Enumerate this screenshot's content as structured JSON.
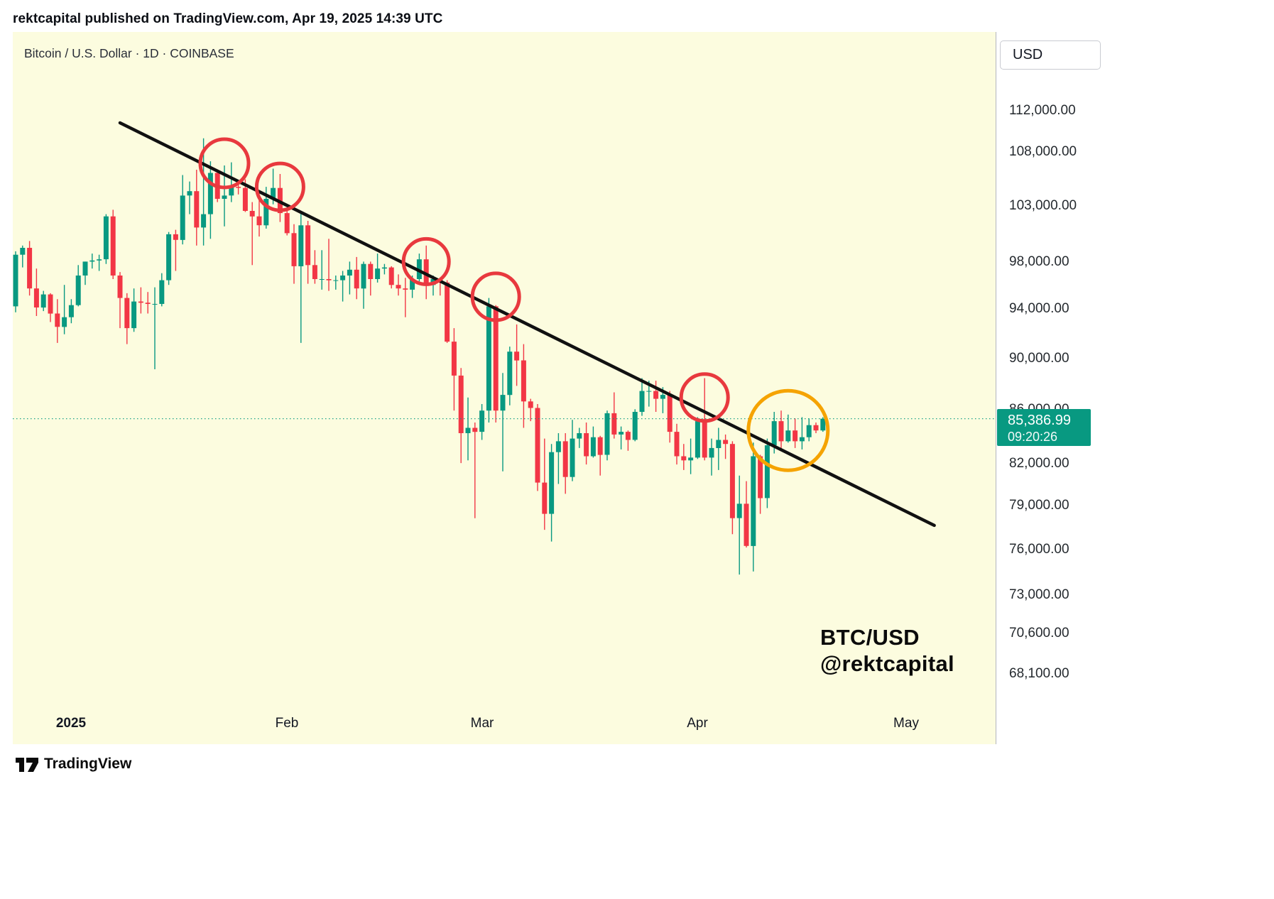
{
  "page": {
    "publish_line": "rektcapital published on TradingView.com, Apr 19, 2025 14:39 UTC",
    "footer_brand": "TradingView"
  },
  "chart_header": {
    "symbol_title": "Bitcoin / U.S. Dollar · 1D · COINBASE"
  },
  "watermark": {
    "line1": "BTC/USD",
    "line2": "@rektcapital"
  },
  "price_axis": {
    "currency_button": "USD",
    "labels": [
      {
        "text": "112,000.00",
        "value": 112000
      },
      {
        "text": "108,000.00",
        "value": 108000
      },
      {
        "text": "103,000.00",
        "value": 103000
      },
      {
        "text": "98,000.00",
        "value": 98000
      },
      {
        "text": "94,000.00",
        "value": 94000
      },
      {
        "text": "90,000.00",
        "value": 90000
      },
      {
        "text": "86,000.00",
        "value": 86000
      },
      {
        "text": "82,000.00",
        "value": 82000
      },
      {
        "text": "79,000.00",
        "value": 79000
      },
      {
        "text": "76,000.00",
        "value": 76000
      },
      {
        "text": "73,000.00",
        "value": 73000
      },
      {
        "text": "70,600.00",
        "value": 70600
      },
      {
        "text": "68,100.00",
        "value": 68100
      }
    ],
    "current_price": {
      "price_label": "85,386.99",
      "countdown": "09:20:26",
      "value": 85386.99
    }
  },
  "time_axis": {
    "labels": [
      {
        "text": "2025",
        "date": "01-01",
        "year": true
      },
      {
        "text": "Feb",
        "date": "02-01",
        "year": false
      },
      {
        "text": "Mar",
        "date": "03-01",
        "year": false
      },
      {
        "text": "Apr",
        "date": "04-01",
        "year": false
      },
      {
        "text": "May",
        "date": "05-01",
        "year": false
      }
    ]
  },
  "colors": {
    "background": "#FCFCDF",
    "candle_up": "#089981",
    "candle_down": "#F23645",
    "trendline": "#111111",
    "red_circle": "#E8393E",
    "orange_circle": "#F5A300",
    "price_line": "#089981",
    "badge": "#089981"
  },
  "chart_data": {
    "type": "candlestick",
    "symbol": "BTC/USD",
    "timeframe": "1D",
    "exchange": "COINBASE",
    "scale": "logarithmic",
    "title": "Bitcoin / U.S. Dollar · 1D · COINBASE",
    "y_axis_values": [
      112000,
      108000,
      103000,
      98000,
      94000,
      90000,
      86000,
      82000,
      79000,
      76000,
      73000,
      70600,
      68100
    ],
    "x_range": [
      "2024-12-24",
      "2025-04-19"
    ],
    "last_price": 85386.99,
    "price_line": {
      "value": 85386.99,
      "style": "dotted"
    },
    "trendline": {
      "type": "descending-resistance",
      "start": {
        "date": "01-08",
        "price": 110900
      },
      "end": {
        "date": "05-05",
        "price": 77700
      }
    },
    "red_circles": [
      {
        "date": "01-23",
        "price": 107000,
        "radius": 34
      },
      {
        "date": "01-31",
        "price": 104800,
        "radius": 33
      },
      {
        "date": "02-21",
        "price": 98100,
        "radius": 32
      },
      {
        "date": "03-03",
        "price": 95100,
        "radius": 33
      },
      {
        "date": "04-02",
        "price": 87000,
        "radius": 33
      }
    ],
    "orange_circle": {
      "date": "04-14",
      "price": 84500,
      "radius": 56
    },
    "candles": [
      [
        "12-24",
        94300,
        99000,
        93800,
        98700
      ],
      [
        "12-25",
        98700,
        99500,
        97600,
        99300
      ],
      [
        "12-26",
        99300,
        99900,
        95200,
        95800
      ],
      [
        "12-27",
        95800,
        97500,
        93500,
        94200
      ],
      [
        "12-28",
        94200,
        95600,
        93900,
        95300
      ],
      [
        "12-29",
        95300,
        95400,
        93000,
        93700
      ],
      [
        "12-30",
        93700,
        94900,
        91300,
        92600
      ],
      [
        "12-31",
        92600,
        96100,
        92000,
        93400
      ],
      [
        "01-01",
        93400,
        94900,
        92900,
        94400
      ],
      [
        "01-02",
        94400,
        97800,
        94300,
        96900
      ],
      [
        "01-03",
        96900,
        98100,
        96100,
        98100
      ],
      [
        "01-04",
        98100,
        98800,
        97500,
        98200
      ],
      [
        "01-05",
        98200,
        98700,
        97300,
        98300
      ],
      [
        "01-06",
        98300,
        102300,
        97900,
        102100
      ],
      [
        "01-07",
        102100,
        102700,
        96600,
        96900
      ],
      [
        "01-08",
        96900,
        97200,
        92500,
        95000
      ],
      [
        "01-09",
        95000,
        95400,
        91200,
        92500
      ],
      [
        "01-10",
        92500,
        95800,
        92200,
        94700
      ],
      [
        "01-11",
        94700,
        95900,
        93700,
        94600
      ],
      [
        "01-12",
        94600,
        95500,
        93700,
        94500
      ],
      [
        "01-13",
        94500,
        95900,
        89200,
        94500
      ],
      [
        "01-14",
        94500,
        97100,
        94300,
        96500
      ],
      [
        "01-15",
        96500,
        100700,
        96100,
        100500
      ],
      [
        "01-16",
        100500,
        100900,
        97300,
        100000
      ],
      [
        "01-17",
        100000,
        105900,
        99600,
        104000
      ],
      [
        "01-18",
        104000,
        105300,
        102300,
        104400
      ],
      [
        "01-19",
        104400,
        106400,
        99500,
        101100
      ],
      [
        "01-20",
        101100,
        109400,
        99500,
        102300
      ],
      [
        "01-21",
        102300,
        107200,
        100100,
        106100
      ],
      [
        "01-22",
        106100,
        106300,
        103400,
        103700
      ],
      [
        "01-23",
        103700,
        106800,
        101200,
        104000
      ],
      [
        "01-24",
        104000,
        107100,
        103400,
        104800
      ],
      [
        "01-25",
        104800,
        105300,
        104100,
        104700
      ],
      [
        "01-26",
        104700,
        105500,
        102500,
        102600
      ],
      [
        "01-27",
        102600,
        103400,
        97800,
        102100
      ],
      [
        "01-28",
        102100,
        103700,
        100300,
        101300
      ],
      [
        "01-29",
        101300,
        104800,
        101000,
        103700
      ],
      [
        "01-30",
        103700,
        106500,
        103200,
        104700
      ],
      [
        "01-31",
        104700,
        106000,
        101600,
        102400
      ],
      [
        "02-01",
        102400,
        102800,
        100400,
        100600
      ],
      [
        "02-02",
        100600,
        101400,
        96200,
        97700
      ],
      [
        "02-03",
        97700,
        102500,
        91300,
        101300
      ],
      [
        "02-04",
        101300,
        101700,
        96200,
        97800
      ],
      [
        "02-05",
        97800,
        99100,
        96200,
        96600
      ],
      [
        "02-06",
        96600,
        99100,
        95700,
        96600
      ],
      [
        "02-07",
        96600,
        100100,
        95600,
        96500
      ],
      [
        "02-08",
        96500,
        96900,
        95700,
        96500
      ],
      [
        "02-09",
        96500,
        97300,
        94700,
        96900
      ],
      [
        "02-10",
        96900,
        98100,
        95300,
        97400
      ],
      [
        "02-11",
        97400,
        98500,
        94900,
        95800
      ],
      [
        "02-12",
        95800,
        98100,
        94100,
        97900
      ],
      [
        "02-13",
        97900,
        98100,
        95200,
        96600
      ],
      [
        "02-14",
        96600,
        98800,
        96300,
        97500
      ],
      [
        "02-15",
        97500,
        97900,
        97000,
        97600
      ],
      [
        "02-16",
        97600,
        97700,
        95800,
        96100
      ],
      [
        "02-17",
        96100,
        97000,
        95200,
        95800
      ],
      [
        "02-18",
        95800,
        96700,
        93400,
        95700
      ],
      [
        "02-19",
        95700,
        96900,
        95000,
        96600
      ],
      [
        "02-20",
        96600,
        98800,
        96400,
        98300
      ],
      [
        "02-21",
        98300,
        99500,
        94900,
        96100
      ],
      [
        "02-22",
        96100,
        96900,
        95200,
        96600
      ],
      [
        "02-23",
        96600,
        96700,
        95200,
        96300
      ],
      [
        "02-24",
        96300,
        96500,
        91300,
        91400
      ],
      [
        "02-25",
        91400,
        92500,
        86000,
        88700
      ],
      [
        "02-26",
        88700,
        89300,
        82100,
        84300
      ],
      [
        "02-27",
        84300,
        87000,
        82300,
        84700
      ],
      [
        "02-28",
        84700,
        85100,
        78200,
        84400
      ],
      [
        "03-01",
        84400,
        86500,
        83800,
        86000
      ],
      [
        "03-02",
        86000,
        95000,
        85100,
        94300
      ],
      [
        "03-03",
        94300,
        94400,
        85100,
        86000
      ],
      [
        "03-04",
        86000,
        88900,
        81500,
        87200
      ],
      [
        "03-05",
        87200,
        91000,
        86400,
        90600
      ],
      [
        "03-06",
        90600,
        92800,
        87900,
        89900
      ],
      [
        "03-07",
        89900,
        91200,
        84700,
        86700
      ],
      [
        "03-08",
        86700,
        86900,
        85200,
        86200
      ],
      [
        "03-09",
        86200,
        86500,
        80100,
        80700
      ],
      [
        "03-10",
        80700,
        83900,
        77400,
        78500
      ],
      [
        "03-11",
        78500,
        83500,
        76600,
        82900
      ],
      [
        "03-12",
        82900,
        84300,
        80600,
        83700
      ],
      [
        "03-13",
        83700,
        84300,
        79900,
        81100
      ],
      [
        "03-14",
        81100,
        85300,
        80800,
        83900
      ],
      [
        "03-15",
        83900,
        84700,
        83200,
        84300
      ],
      [
        "03-16",
        84300,
        85100,
        82000,
        82600
      ],
      [
        "03-17",
        82600,
        84800,
        82500,
        84000
      ],
      [
        "03-18",
        84000,
        84100,
        81200,
        82700
      ],
      [
        "03-19",
        82700,
        86000,
        82300,
        85800
      ],
      [
        "03-20",
        85800,
        87400,
        83900,
        84200
      ],
      [
        "03-21",
        84200,
        84800,
        83100,
        84400
      ],
      [
        "03-22",
        84400,
        84500,
        83000,
        83800
      ],
      [
        "03-23",
        83800,
        86100,
        83700,
        85900
      ],
      [
        "03-24",
        85900,
        88500,
        85600,
        87500
      ],
      [
        "03-25",
        87500,
        88300,
        86300,
        87500
      ],
      [
        "03-26",
        87500,
        88300,
        85900,
        86900
      ],
      [
        "03-27",
        86900,
        87800,
        85800,
        87200
      ],
      [
        "03-28",
        87200,
        87500,
        83600,
        84400
      ],
      [
        "03-29",
        84400,
        85000,
        82000,
        82600
      ],
      [
        "03-30",
        82600,
        83500,
        81600,
        82300
      ],
      [
        "03-31",
        82300,
        83900,
        81300,
        82500
      ],
      [
        "04-01",
        82500,
        85500,
        82400,
        85200
      ],
      [
        "04-02",
        85200,
        88500,
        82300,
        82500
      ],
      [
        "04-03",
        82500,
        83900,
        81200,
        83200
      ],
      [
        "04-04",
        83200,
        84700,
        81600,
        83800
      ],
      [
        "04-05",
        83800,
        84200,
        82400,
        83500
      ],
      [
        "04-06",
        83500,
        83700,
        77100,
        78200
      ],
      [
        "04-07",
        78200,
        81200,
        74400,
        79200
      ],
      [
        "04-08",
        79200,
        80800,
        76200,
        76300
      ],
      [
        "04-09",
        76300,
        83600,
        74600,
        82600
      ],
      [
        "04-10",
        82600,
        82700,
        78500,
        79600
      ],
      [
        "04-11",
        79600,
        83900,
        78900,
        83400
      ],
      [
        "04-12",
        83400,
        85900,
        82800,
        85200
      ],
      [
        "04-13",
        85200,
        86000,
        83000,
        83700
      ],
      [
        "04-14",
        83700,
        85700,
        83600,
        84500
      ],
      [
        "04-15",
        84500,
        85400,
        83200,
        83700
      ],
      [
        "04-16",
        83700,
        85500,
        83100,
        84000
      ],
      [
        "04-17",
        84000,
        85400,
        83700,
        84900
      ],
      [
        "04-18",
        84900,
        85100,
        84300,
        84500
      ],
      [
        "04-19",
        84500,
        85500,
        84400,
        85387
      ]
    ]
  }
}
